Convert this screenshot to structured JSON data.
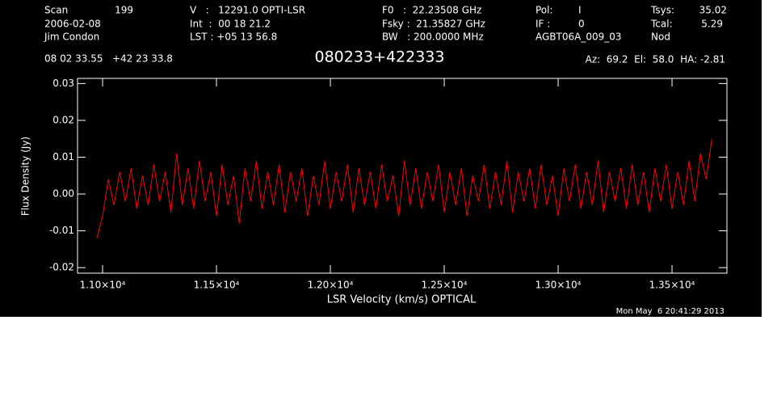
{
  "chart_data": {
    "type": "line",
    "title": "080233+422333",
    "xlabel": "LSR Velocity (km/s) OPTICAL",
    "ylabel": "Flux Density (Jy)",
    "timestamp": "Mon May  6 20:41:29 2013",
    "annotations": [
      "Scan",
      "199",
      "2006-02-08",
      "Jim Condon",
      "V   :   12291.0 OPTI-LSR",
      "Int  :  00 18 21.2",
      "LST : +05 13 56.8",
      "F0   :  22.23508 GHz",
      "Fsky :  21.35827 GHz",
      "BW   : 200.0000 MHz",
      "Pol:",
      "I",
      "IF :",
      "0",
      "AGBT06A_009_03",
      "Tsys:",
      "35.02",
      "Tcal:",
      "5.29",
      "Nod",
      "08 02 33.55   +42 23 33.8",
      "Az:  69.2  El:  58.0  HA: -2.81"
    ],
    "xlim": [
      10890,
      13741
    ],
    "ylim": [
      -0.0215,
      0.0314
    ],
    "xticks": [
      {
        "value": 11000,
        "label": "1.10×10⁴"
      },
      {
        "value": 11500,
        "label": "1.15×10⁴"
      },
      {
        "value": 12000,
        "label": "1.20×10⁴"
      },
      {
        "value": 12500,
        "label": "1.25×10⁴"
      },
      {
        "value": 13000,
        "label": "1.30×10⁴"
      },
      {
        "value": 13500,
        "label": "1.35×10⁴"
      }
    ],
    "yticks": [
      -0.02,
      -0.01,
      {
        "value": 0,
        "label": "0.00"
      },
      0.01,
      0.02,
      0.03
    ],
    "x": [
      10975,
      11000,
      11025,
      11050,
      11075,
      11100,
      11125,
      11150,
      11175,
      11200,
      11225,
      11250,
      11275,
      11300,
      11325,
      11350,
      11375,
      11400,
      11425,
      11450,
      11475,
      11500,
      11525,
      11550,
      11575,
      11600,
      11625,
      11650,
      11675,
      11700,
      11725,
      11750,
      11775,
      11800,
      11825,
      11850,
      11875,
      11900,
      11925,
      11950,
      11975,
      12000,
      12025,
      12050,
      12075,
      12100,
      12125,
      12150,
      12175,
      12200,
      12225,
      12250,
      12275,
      12300,
      12325,
      12350,
      12375,
      12400,
      12425,
      12450,
      12475,
      12500,
      12525,
      12550,
      12575,
      12600,
      12625,
      12650,
      12675,
      12700,
      12725,
      12750,
      12775,
      12800,
      12825,
      12850,
      12875,
      12900,
      12925,
      12950,
      12975,
      13000,
      13025,
      13050,
      13075,
      13100,
      13125,
      13150,
      13175,
      13200,
      13225,
      13250,
      13275,
      13300,
      13325,
      13350,
      13375,
      13400,
      13425,
      13450,
      13475,
      13500,
      13525,
      13550,
      13575,
      13600,
      13625,
      13650,
      13675
    ],
    "series": [
      {
        "color": "#ff0000",
        "values": [
          -0.012,
          -0.006,
          0.004,
          -0.003,
          0.006,
          -0.002,
          0.007,
          -0.004,
          0.005,
          -0.003,
          0.008,
          -0.002,
          0.006,
          -0.005,
          0.011,
          -0.003,
          0.007,
          -0.004,
          0.009,
          -0.002,
          0.006,
          -0.006,
          0.008,
          -0.003,
          0.005,
          -0.008,
          0.007,
          -0.002,
          0.009,
          -0.004,
          0.006,
          -0.003,
          0.008,
          -0.005,
          0.006,
          -0.002,
          0.007,
          -0.006,
          0.005,
          -0.003,
          0.009,
          -0.004,
          0.006,
          -0.002,
          0.008,
          -0.005,
          0.007,
          -0.003,
          0.006,
          -0.004,
          0.008,
          -0.002,
          0.005,
          -0.006,
          0.009,
          -0.003,
          0.007,
          -0.004,
          0.006,
          -0.002,
          0.008,
          -0.005,
          0.006,
          -0.003,
          0.007,
          -0.006,
          0.005,
          -0.002,
          0.008,
          -0.004,
          0.006,
          -0.003,
          0.009,
          -0.005,
          0.006,
          -0.002,
          0.007,
          -0.004,
          0.008,
          -0.003,
          0.005,
          -0.006,
          0.007,
          -0.002,
          0.008,
          -0.004,
          0.006,
          -0.003,
          0.009,
          -0.005,
          0.006,
          -0.002,
          0.007,
          -0.004,
          0.008,
          -0.003,
          0.006,
          -0.005,
          0.007,
          -0.002,
          0.008,
          -0.004,
          0.006,
          -0.003,
          0.009,
          -0.002,
          0.011,
          0.004,
          0.015
        ]
      }
    ]
  }
}
